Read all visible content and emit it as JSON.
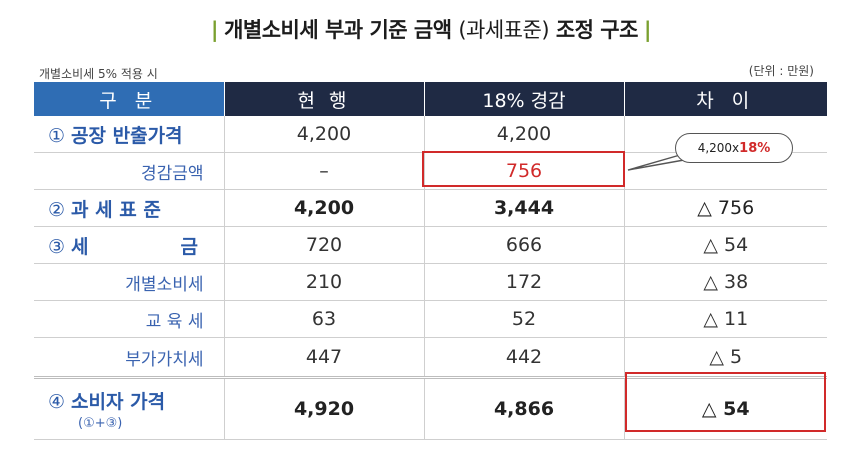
{
  "title": {
    "main": "개별소비세 부과 기준 금액",
    "paren": "(과세표준)",
    "tail": "조정 구조",
    "bar": "|"
  },
  "notes": {
    "left": "개별소비세 5% 적용 시",
    "right": "(단위 : 만원)"
  },
  "table": {
    "headers": [
      "구 분",
      "현 행",
      "18% 경감",
      "차 이"
    ],
    "rows": [
      {
        "num": "①",
        "label": "공장 반출가격",
        "current": "4,200",
        "reduced": "4,200",
        "diff": ""
      },
      {
        "num": "",
        "label": "경감금액",
        "current": "–",
        "reduced": "756",
        "diff": ""
      },
      {
        "num": "②",
        "label": "과 세 표 준",
        "current": "4,200",
        "reduced": "3,444",
        "diff": "△ 756"
      },
      {
        "num": "③",
        "label": "세",
        "label2": "금",
        "current": "720",
        "reduced": "666",
        "diff": "△  54"
      },
      {
        "num": "",
        "label": "개별소비세",
        "current": "210",
        "reduced": "172",
        "diff": "△  38"
      },
      {
        "num": "",
        "label": "교 육 세",
        "current": "63",
        "reduced": "52",
        "diff": "△  11"
      },
      {
        "num": "",
        "label": "부가가치세",
        "current": "447",
        "reduced": "442",
        "diff": "△   5"
      },
      {
        "num": "④",
        "label": "소비자 가격",
        "sub": "(①+③)",
        "current": "4,920",
        "reduced": "4,866",
        "diff": "△ 54"
      }
    ]
  },
  "callout": {
    "prefix": "4,200x",
    "highlight": "18%"
  },
  "colors": {
    "accent_bar": "#7aa02f",
    "header_blue": "#2f6db4",
    "header_navy": "#1f2a44",
    "highlight_red": "#d12a2a",
    "label_blue": "#2b5aa8"
  }
}
